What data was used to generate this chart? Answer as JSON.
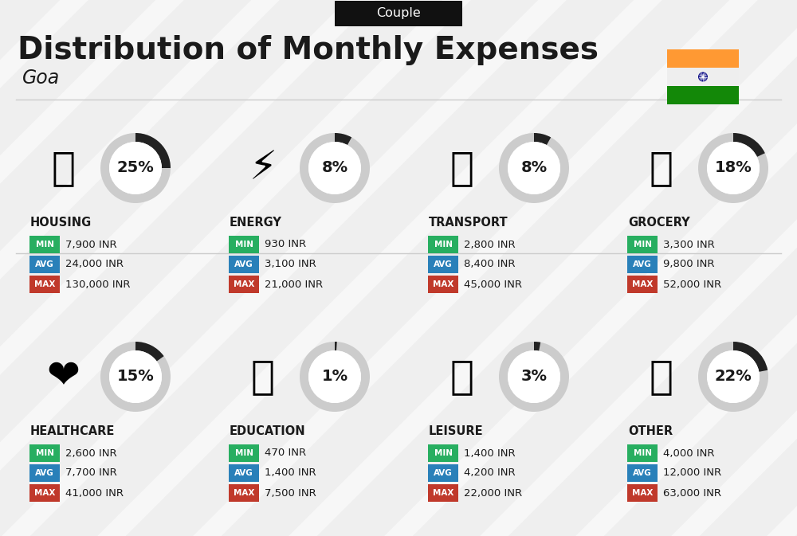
{
  "title": "Distribution of Monthly Expenses",
  "subtitle": "Couple",
  "location": "Goa",
  "bg_color": "#efefef",
  "categories": [
    {
      "name": "HOUSING",
      "percent": 25,
      "min_val": "7,900 INR",
      "avg_val": "24,000 INR",
      "max_val": "130,000 INR",
      "emoji": "🏗",
      "row": 0,
      "col": 0
    },
    {
      "name": "ENERGY",
      "percent": 8,
      "min_val": "930 INR",
      "avg_val": "3,100 INR",
      "max_val": "21,000 INR",
      "emoji": "⚡",
      "row": 0,
      "col": 1
    },
    {
      "name": "TRANSPORT",
      "percent": 8,
      "min_val": "2,800 INR",
      "avg_val": "8,400 INR",
      "max_val": "45,000 INR",
      "emoji": "🚌",
      "row": 0,
      "col": 2
    },
    {
      "name": "GROCERY",
      "percent": 18,
      "min_val": "3,300 INR",
      "avg_val": "9,800 INR",
      "max_val": "52,000 INR",
      "emoji": "🛒",
      "row": 0,
      "col": 3
    },
    {
      "name": "HEALTHCARE",
      "percent": 15,
      "min_val": "2,600 INR",
      "avg_val": "7,700 INR",
      "max_val": "41,000 INR",
      "emoji": "❤️",
      "row": 1,
      "col": 0
    },
    {
      "name": "EDUCATION",
      "percent": 1,
      "min_val": "470 INR",
      "avg_val": "1,400 INR",
      "max_val": "7,500 INR",
      "emoji": "🎓",
      "row": 1,
      "col": 1
    },
    {
      "name": "LEISURE",
      "percent": 3,
      "min_val": "1,400 INR",
      "avg_val": "4,200 INR",
      "max_val": "22,000 INR",
      "emoji": "🛍",
      "row": 1,
      "col": 2
    },
    {
      "name": "OTHER",
      "percent": 22,
      "min_val": "4,000 INR",
      "avg_val": "12,000 INR",
      "max_val": "63,000 INR",
      "emoji": "👜",
      "row": 1,
      "col": 3
    }
  ],
  "min_color": "#27ae60",
  "avg_color": "#2980b9",
  "max_color": "#c0392b",
  "text_color": "#1a1a1a",
  "donut_bg": "#cccccc",
  "donut_filled": "#222222",
  "flag_orange": "#FF9933",
  "flag_green": "#138808",
  "flag_navy": "#000080",
  "stripe_color": "#ffffff",
  "header_bg": "#111111",
  "divider_color": "#cccccc"
}
